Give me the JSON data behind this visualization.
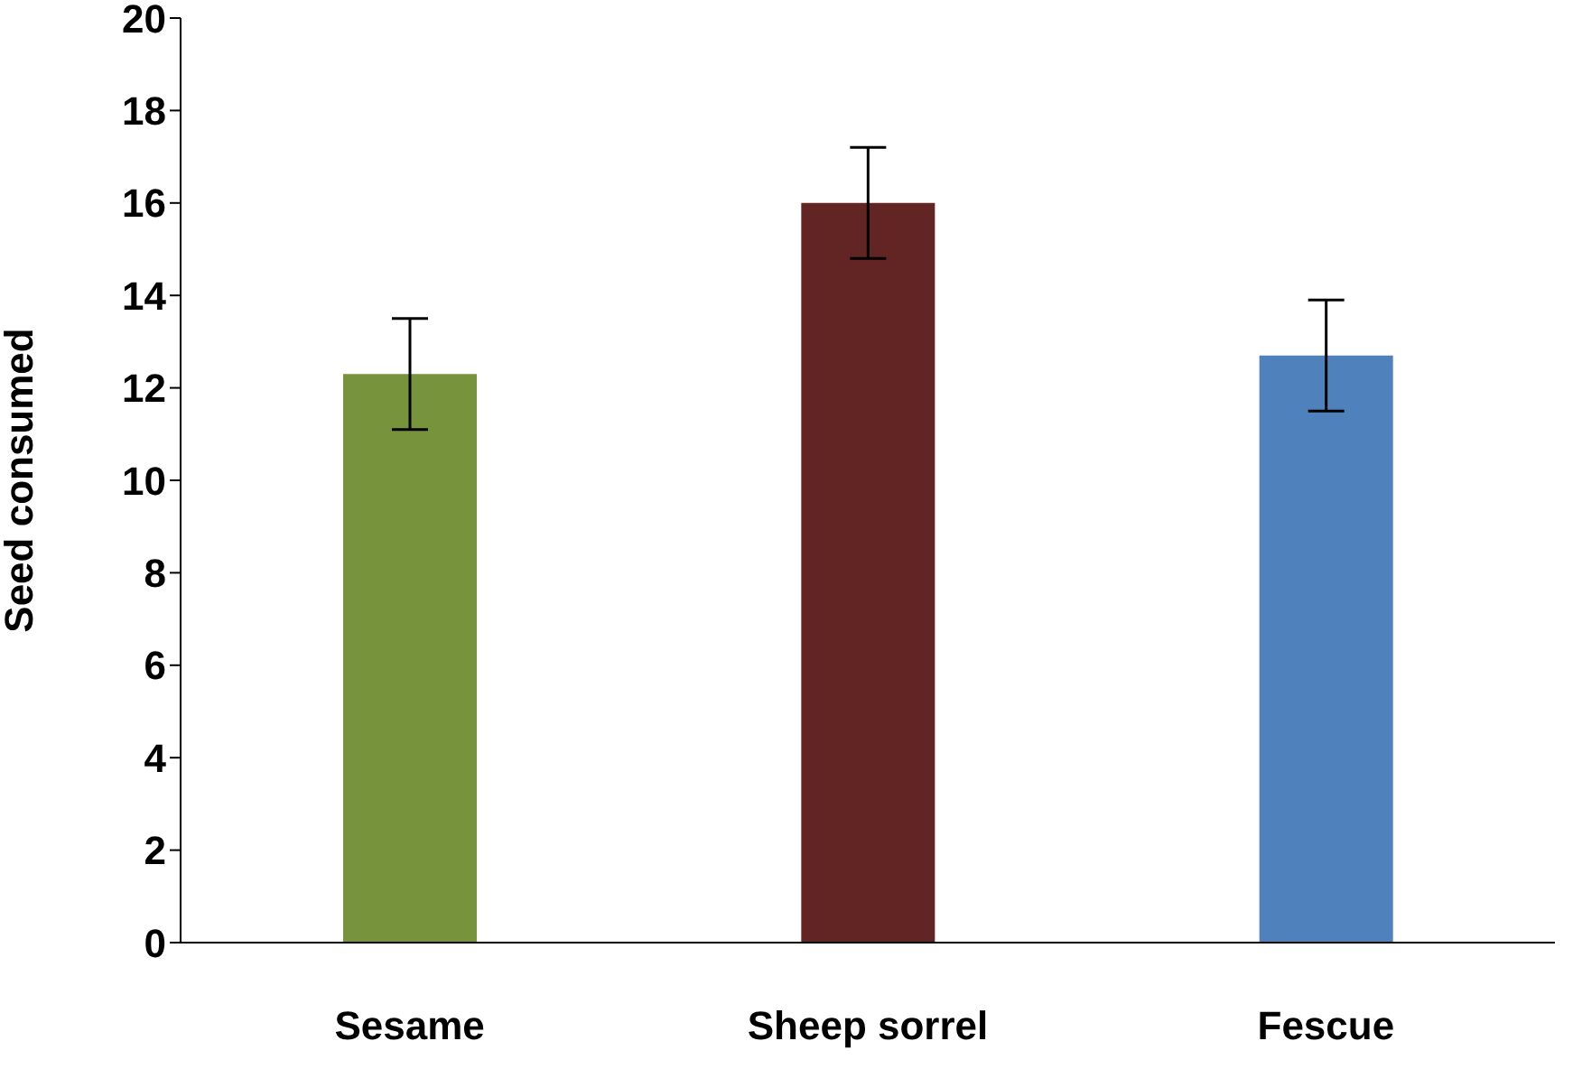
{
  "chart_data": {
    "type": "bar",
    "ylabel": "Seed consumed",
    "categories": [
      "Sesame",
      "Sheep sorrel",
      "Fescue"
    ],
    "values": [
      12.3,
      16.0,
      12.7
    ],
    "colors": [
      "#77933c",
      "#632523",
      "#4f81bd"
    ],
    "errors": [
      1.2,
      1.2,
      1.2
    ],
    "ylim": [
      0,
      20
    ],
    "yticks": [
      0,
      2,
      4,
      6,
      8,
      10,
      12,
      14,
      16,
      18,
      20
    ],
    "grid": false,
    "legend": false
  }
}
